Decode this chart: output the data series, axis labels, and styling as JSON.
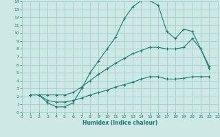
{
  "xlabel": "Humidex (Indice chaleur)",
  "xlim": [
    0,
    23
  ],
  "ylim": [
    0,
    14
  ],
  "xticks": [
    0,
    1,
    2,
    3,
    4,
    5,
    6,
    7,
    8,
    9,
    10,
    11,
    12,
    13,
    14,
    15,
    16,
    17,
    18,
    19,
    20,
    21,
    22,
    23
  ],
  "yticks": [
    0,
    1,
    2,
    3,
    4,
    5,
    6,
    7,
    8,
    9,
    10,
    11,
    12,
    13,
    14
  ],
  "background_color": "#cde8e5",
  "grid_color": "#9fcfcb",
  "line_color": "#1a7a6e",
  "line1_x": [
    1,
    2,
    3,
    4,
    5,
    6,
    7,
    8,
    9,
    10,
    11,
    12,
    13,
    14,
    15,
    16,
    17,
    18,
    19,
    20,
    21,
    22
  ],
  "line1_y": [
    2.2,
    2.2,
    1.2,
    0.7,
    0.7,
    1.2,
    3.0,
    5.0,
    6.5,
    8.0,
    9.5,
    11.8,
    13.3,
    14.1,
    14.1,
    13.5,
    10.2,
    9.3,
    10.5,
    10.2,
    8.0,
    5.5
  ],
  "line2_x": [
    1,
    2,
    3,
    4,
    5,
    6,
    7,
    8,
    9,
    10,
    11,
    12,
    13,
    14,
    15,
    16,
    17,
    18,
    19,
    20,
    21,
    22
  ],
  "line2_y": [
    2.2,
    2.2,
    2.2,
    2.2,
    2.2,
    2.5,
    3.2,
    4.0,
    4.8,
    5.5,
    6.2,
    6.8,
    7.4,
    7.8,
    8.2,
    8.2,
    8.0,
    8.0,
    8.2,
    9.3,
    8.0,
    5.8
  ],
  "line3_x": [
    1,
    2,
    3,
    4,
    5,
    6,
    7,
    8,
    9,
    10,
    11,
    12,
    13,
    14,
    15,
    16,
    17,
    18,
    19,
    20,
    21,
    22
  ],
  "line3_y": [
    2.2,
    2.2,
    1.5,
    1.3,
    1.3,
    1.5,
    1.8,
    2.2,
    2.5,
    2.8,
    3.2,
    3.5,
    3.8,
    4.2,
    4.5,
    4.5,
    4.2,
    4.2,
    4.3,
    4.5,
    4.5,
    4.5
  ]
}
